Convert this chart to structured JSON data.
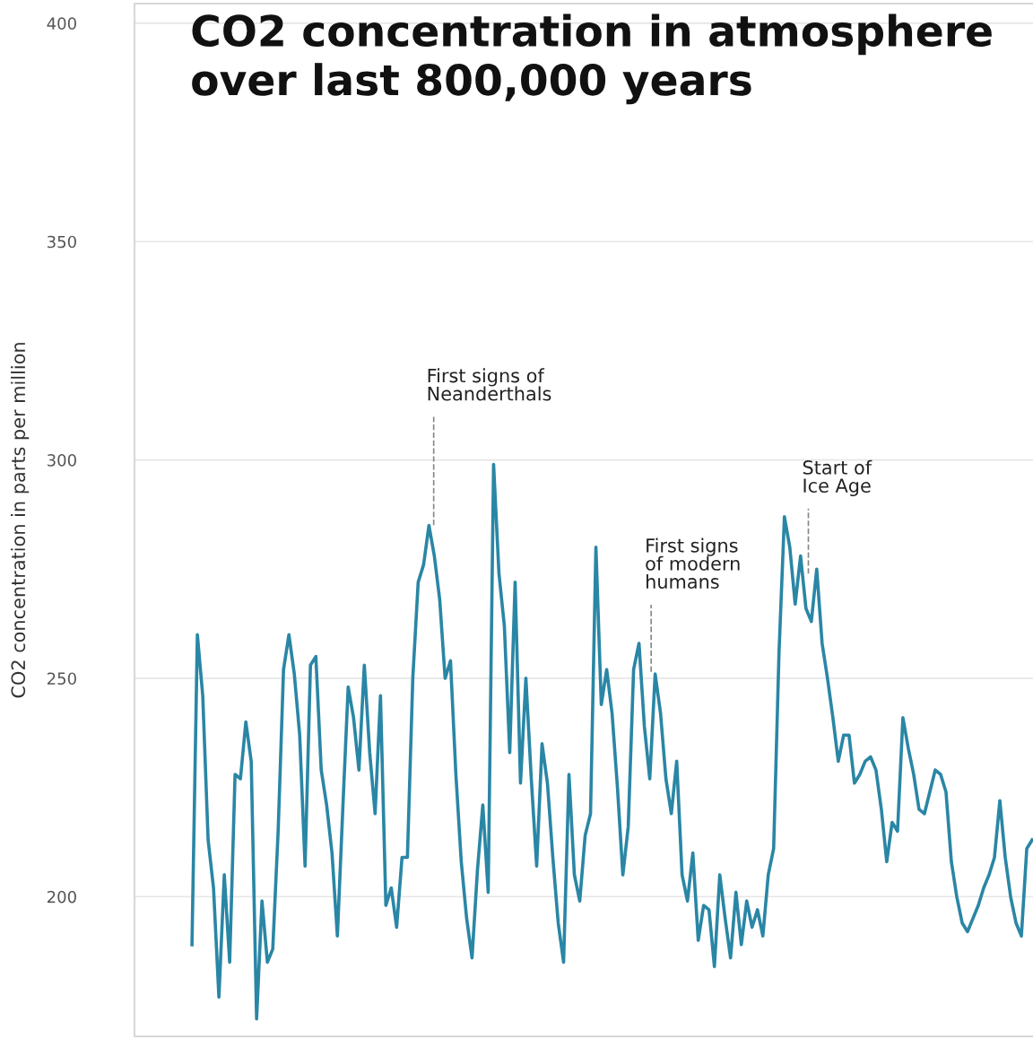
{
  "chart_data": {
    "type": "line",
    "title": "CO2 concentration in atmosphere\nover last 800,000 years",
    "ylabel": "CO2 concentration in parts per million",
    "categories": [
      null,
      null,
      null,
      null,
      null,
      null,
      null,
      null,
      null,
      null,
      null,
      null,
      null,
      null,
      null,
      null,
      null,
      null,
      null,
      null,
      null,
      null,
      null,
      null,
      null,
      null,
      null,
      null,
      null,
      null,
      null,
      null,
      null,
      null,
      null,
      null,
      null,
      null,
      null,
      null,
      null,
      null,
      null,
      null,
      null,
      null,
      null,
      null,
      null,
      null,
      null,
      null,
      null,
      null,
      null,
      null,
      null,
      null,
      null,
      null,
      null,
      null,
      null,
      null,
      null,
      null,
      null,
      null,
      null,
      null,
      null,
      null,
      null,
      null,
      null,
      null,
      null,
      null,
      null,
      null,
      null,
      null,
      null,
      null,
      null,
      null,
      null,
      null,
      null,
      null,
      null,
      null,
      null,
      null,
      null,
      null,
      null,
      null,
      null,
      null,
      null,
      null,
      null,
      null,
      null,
      null,
      null,
      null,
      null,
      null,
      null,
      null,
      null,
      null,
      null,
      null,
      null,
      null,
      null,
      null,
      null,
      null,
      null,
      null,
      null,
      null,
      null,
      null,
      null,
      null,
      null,
      null,
      null,
      null,
      null,
      null,
      null,
      null,
      null,
      null,
      null,
      null,
      null,
      null,
      null,
      null,
      null,
      null,
      null,
      null,
      null,
      null,
      null,
      null,
      null,
      null,
      null
    ],
    "series": [
      {
        "color": "#2a86a5",
        "values": [
          189,
          260,
          246,
          213,
          202,
          177,
          205,
          185,
          228,
          227,
          240,
          231,
          172,
          199,
          185,
          188,
          215,
          252,
          260,
          251,
          237,
          207,
          253,
          255,
          229,
          221,
          210,
          191,
          220,
          248,
          241,
          229,
          253,
          233,
          219,
          246,
          198,
          202,
          193,
          209,
          209,
          250,
          272,
          276,
          285,
          278,
          268,
          250,
          254,
          228,
          208,
          195,
          186,
          206,
          221,
          201,
          299,
          274,
          262,
          233,
          272,
          226,
          250,
          227,
          207,
          235,
          226,
          209,
          194,
          185,
          228,
          205,
          199,
          214,
          219,
          280,
          244,
          252,
          242,
          225,
          205,
          216,
          252,
          258,
          239,
          227,
          251,
          242,
          227,
          219,
          231,
          205,
          199,
          210,
          190,
          198,
          197,
          184,
          205,
          195,
          186,
          201,
          189,
          199,
          193,
          197,
          191,
          205,
          211,
          256,
          287,
          280,
          267,
          278,
          266,
          263,
          275,
          258,
          250,
          241,
          231,
          237,
          237,
          226,
          228,
          231,
          232,
          229,
          220,
          208,
          217,
          215,
          241,
          234,
          228,
          220,
          219,
          224,
          229,
          228,
          224,
          208,
          200,
          194,
          192,
          195,
          198,
          202,
          205,
          209,
          222,
          209,
          200,
          194,
          191,
          211,
          213
        ]
      }
    ],
    "ylim": [
      168,
      404.5
    ],
    "yticks": [
      200,
      250,
      300,
      350,
      400
    ],
    "grid": "y",
    "line_style": "solid",
    "annotations": [
      "First signs of\nNeanderthals",
      "First signs\nof modern\nhumans",
      "Start of\nIce Age"
    ]
  }
}
